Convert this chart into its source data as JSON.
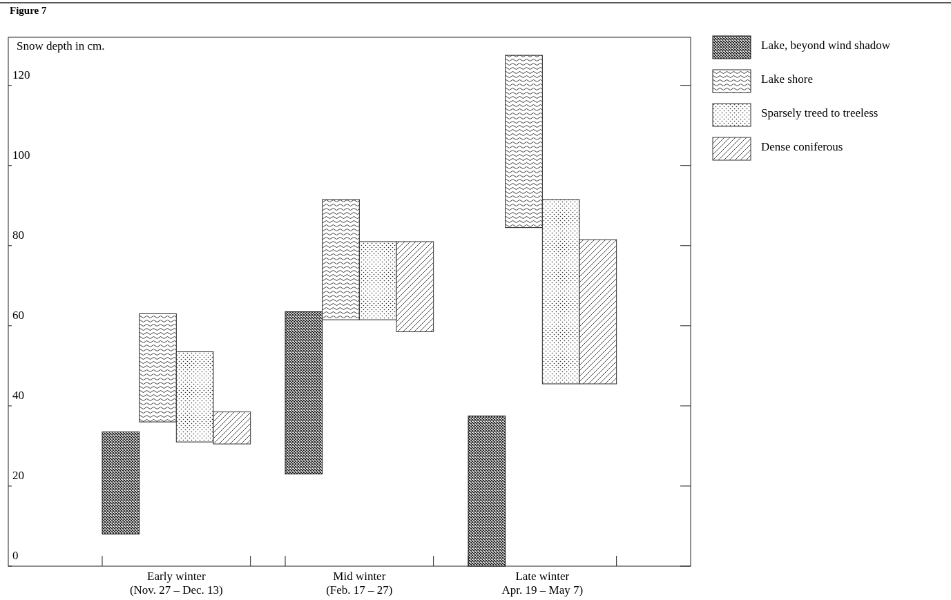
{
  "chart_data": {
    "type": "bar",
    "title": "Figure 7",
    "ylabel": "Snow depth in cm.",
    "categories": [
      "Early winter\n(Nov. 27 – Dec. 13)",
      "Mid winter\n(Feb. 17 – 27)",
      "Late winter\nApr. 19 – May 7)"
    ],
    "series": [
      {
        "name": "Lake, beyond wind shadow",
        "color": "#1a1a1a",
        "base": [
          8,
          23,
          0
        ],
        "values": [
          25.5,
          40.5,
          37.5
        ]
      },
      {
        "name": "Lake shore",
        "color": "#222222",
        "base": [
          36,
          61.5,
          84.5
        ],
        "values": [
          27,
          30,
          43
        ]
      },
      {
        "name": "Sparsely treed to treeless",
        "color": "#2a2a2a",
        "base": [
          31,
          61.5,
          45.5
        ],
        "values": [
          22.5,
          19.5,
          46
        ]
      },
      {
        "name": "Dense coniferous",
        "color": "#333333",
        "base": [
          30.5,
          58.5,
          45.5
        ],
        "values": [
          8,
          22.5,
          36
        ]
      }
    ],
    "ylim": [
      0,
      132
    ],
    "yticks": [
      0,
      20,
      40,
      60,
      80,
      100,
      120
    ],
    "grid": false,
    "legend": "right"
  }
}
